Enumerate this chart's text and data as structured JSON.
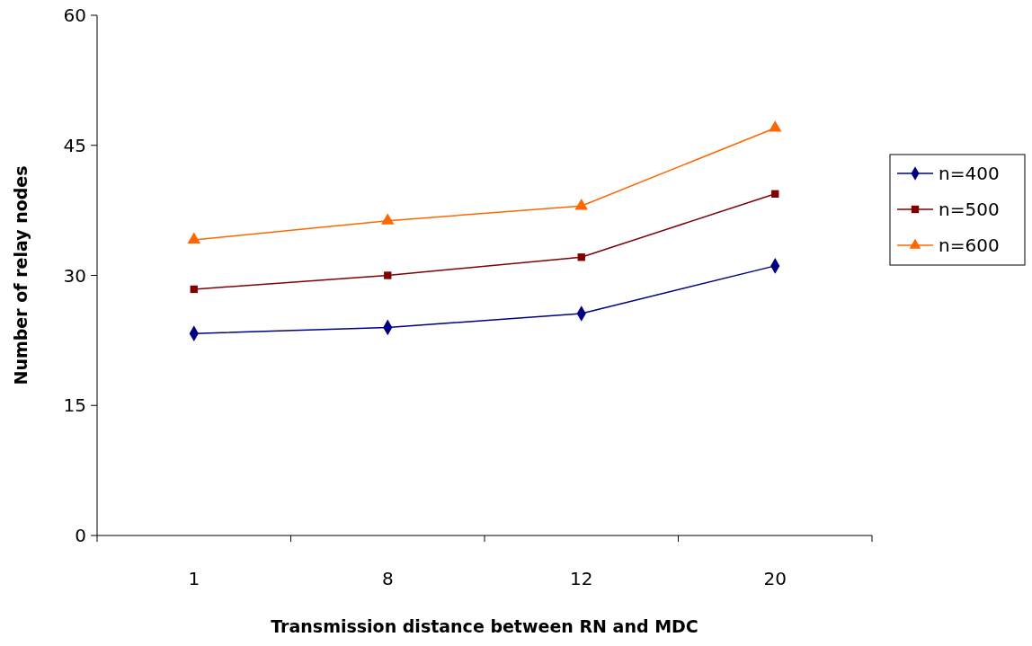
{
  "chart_data": {
    "type": "line",
    "xlabel": "Transmission distance between RN and MDC",
    "ylabel": "Number of relay nodes",
    "categories": [
      "1",
      "8",
      "12",
      "20"
    ],
    "ylim": [
      0,
      60
    ],
    "yticks": [
      0,
      15,
      30,
      45,
      60
    ],
    "grid": false,
    "legend": "right",
    "series": [
      {
        "name": "n=400",
        "color": "#000080",
        "marker": "diamond",
        "values": [
          23.3,
          24.0,
          25.6,
          31.1
        ]
      },
      {
        "name": "n=500",
        "color": "#800000",
        "marker": "square",
        "values": [
          28.4,
          30.0,
          32.1,
          39.4
        ]
      },
      {
        "name": "n=600",
        "color": "#ff6600",
        "marker": "triangle",
        "values": [
          34.1,
          36.3,
          38.0,
          47.0
        ]
      }
    ]
  }
}
